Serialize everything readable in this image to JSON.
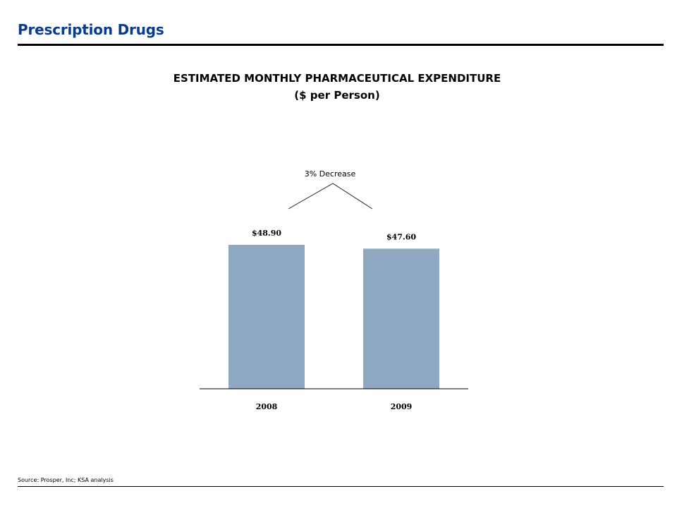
{
  "header": {
    "title": "Prescription Drugs"
  },
  "chart_data": {
    "type": "bar",
    "title": "ESTIMATED MONTHLY PHARMACEUTICAL EXPENDITURE",
    "subtitle": "($ per Person)",
    "categories": [
      "2008",
      "2009"
    ],
    "values": [
      48.9,
      47.6
    ],
    "value_labels": [
      "$48.90",
      "$47.60"
    ],
    "bar_color": "#8ea9c1",
    "annotation": "3% Decrease",
    "xlabel": "",
    "ylabel": "",
    "ylim": [
      0,
      50
    ],
    "grid": false
  },
  "footer": {
    "source": "Source: Prosper, Inc; KSA analysis"
  }
}
